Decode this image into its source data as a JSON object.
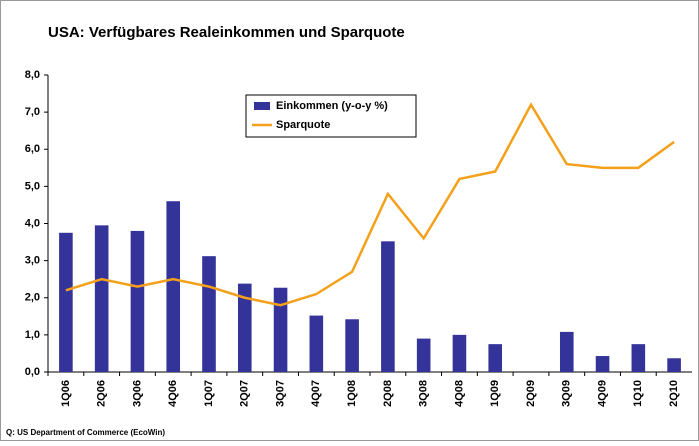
{
  "chart_data": {
    "type": "bar_line",
    "title": "USA: Verfügbares Realeinkommen und Sparquote",
    "source": "Q: US Department of Commerce (EcoWin)",
    "categories": [
      "1Q06",
      "2Q06",
      "3Q06",
      "4Q06",
      "1Q07",
      "2Q07",
      "3Q07",
      "4Q07",
      "1Q08",
      "2Q08",
      "3Q08",
      "4Q08",
      "1Q09",
      "2Q09",
      "3Q09",
      "4Q09",
      "1Q10",
      "2Q10"
    ],
    "series": [
      {
        "name": "Einkommen (y-o-y %)",
        "type": "bar",
        "color": "#333399",
        "values": [
          3.75,
          3.95,
          3.8,
          4.6,
          3.12,
          2.38,
          2.27,
          1.52,
          1.42,
          3.52,
          0.9,
          1.0,
          0.75,
          null,
          1.08,
          0.43,
          0.75,
          0.37
        ]
      },
      {
        "name": "Sparquote",
        "type": "line",
        "color": "#f5a01a",
        "values": [
          2.2,
          2.5,
          2.3,
          2.5,
          2.3,
          2.0,
          1.8,
          2.1,
          2.7,
          4.8,
          3.6,
          5.2,
          5.4,
          7.2,
          5.6,
          5.5,
          5.5,
          6.2
        ]
      }
    ],
    "ylim": [
      0,
      8
    ],
    "yticks": [
      {
        "value": 0,
        "label": "0,0"
      },
      {
        "value": 1,
        "label": "1,0"
      },
      {
        "value": 2,
        "label": "2,0"
      },
      {
        "value": 3,
        "label": "3,0"
      },
      {
        "value": 4,
        "label": "4,0"
      },
      {
        "value": 5,
        "label": "5,0"
      },
      {
        "value": 6,
        "label": "6,0"
      },
      {
        "value": 7,
        "label": "7,0"
      },
      {
        "value": 8,
        "label": "8,0"
      }
    ],
    "grid": false,
    "legend": "upper center"
  }
}
